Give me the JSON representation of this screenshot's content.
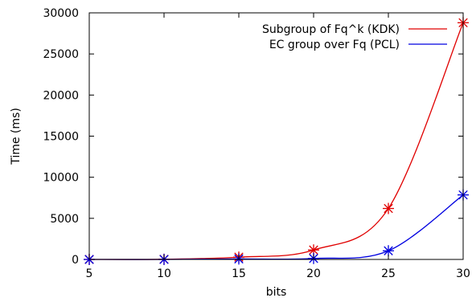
{
  "chart_data": {
    "type": "line",
    "xlabel": "bits",
    "ylabel": "Time (ms)",
    "x": [
      5,
      10,
      15,
      20,
      25,
      30
    ],
    "xticks": [
      5,
      10,
      15,
      20,
      25,
      30
    ],
    "yticks": [
      0,
      5000,
      10000,
      15000,
      20000,
      25000,
      30000
    ],
    "xlim": [
      5,
      30
    ],
    "ylim": [
      0,
      30000
    ],
    "grid": false,
    "legend_position": "top-right",
    "series": [
      {
        "name": "Subgroup of Fq^k (KDK)",
        "color": "#e00000",
        "marker": "asterisk",
        "values": [
          0,
          20,
          280,
          1150,
          6200,
          28800
        ]
      },
      {
        "name": "EC group over Fq (PCL)",
        "color": "#0000e0",
        "marker": "asterisk",
        "values": [
          0,
          0,
          60,
          120,
          1050,
          7850
        ]
      }
    ]
  }
}
